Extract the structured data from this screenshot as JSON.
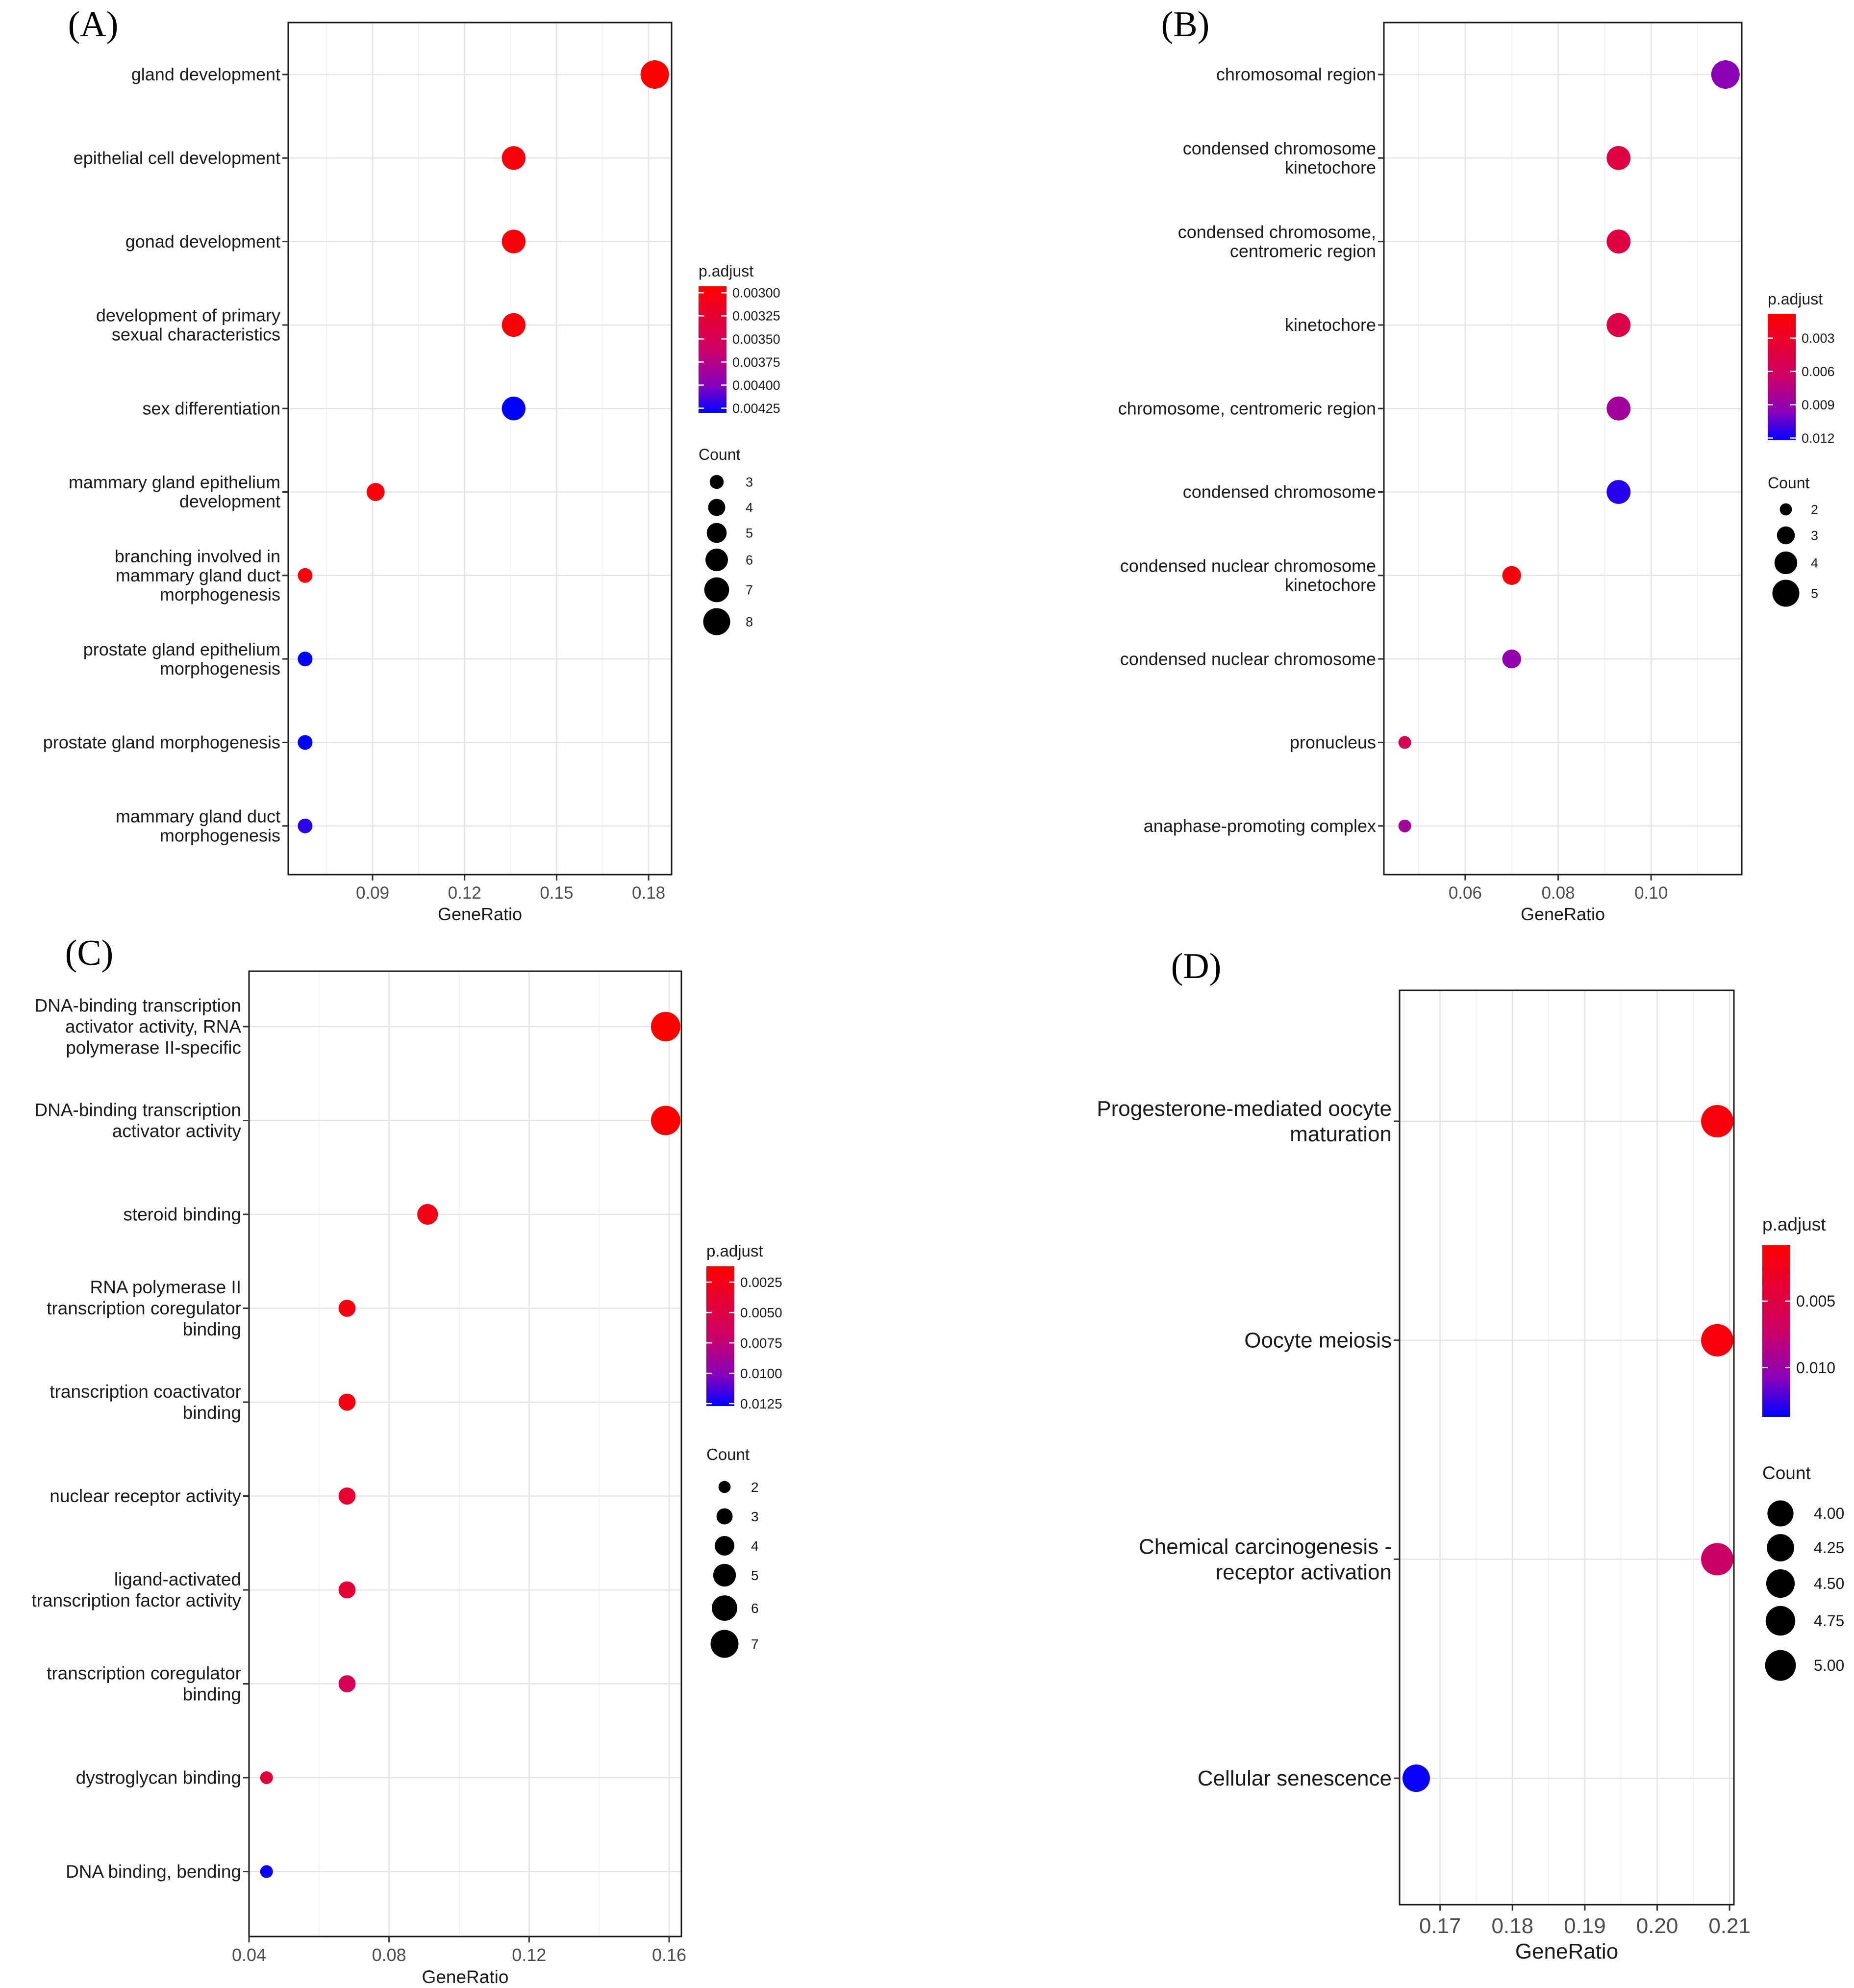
{
  "chart_data": [
    {
      "panel": "(A)",
      "type": "scatter",
      "xlabel": "GeneRatio",
      "xticks": [
        0.09,
        0.12,
        0.15,
        0.18
      ],
      "xlim": [
        0.0625,
        0.1875
      ],
      "categories": [
        "gland development",
        "epithelial cell development",
        "gonad development",
        "development of primary sexual characteristics",
        "sex differentiation",
        "mammary gland epithelium development",
        "branching involved in mammary gland duct morphogenesis",
        "prostate gland epithelium morphogenesis",
        "prostate gland morphogenesis",
        "mammary gland duct morphogenesis"
      ],
      "label_lines": [
        [
          "gland development"
        ],
        [
          "epithelial cell development"
        ],
        [
          "gonad development"
        ],
        [
          "development of primary",
          "sexual characteristics"
        ],
        [
          "sex differentiation"
        ],
        [
          "mammary gland epithelium",
          "development"
        ],
        [
          "branching involved in",
          "mammary gland duct",
          "morphogenesis"
        ],
        [
          "prostate gland epithelium",
          "morphogenesis"
        ],
        [
          "prostate gland morphogenesis"
        ],
        [
          "mammary gland duct",
          "morphogenesis"
        ]
      ],
      "gene_ratio": [
        0.182,
        0.136,
        0.136,
        0.136,
        0.136,
        0.091,
        0.068,
        0.068,
        0.068,
        0.068
      ],
      "count": [
        8,
        6,
        6,
        6,
        6,
        4,
        3,
        3,
        3,
        3
      ],
      "p_adjust": [
        0.0029,
        0.003,
        0.003,
        0.003,
        0.0043,
        0.003,
        0.003,
        0.0043,
        0.0043,
        0.0042
      ],
      "color_legend": {
        "title": "p.adjust",
        "ticks": [
          "0.00300",
          "0.00325",
          "0.00350",
          "0.00375",
          "0.00400",
          "0.00425"
        ],
        "values": [
          0.003,
          0.00325,
          0.0035,
          0.00375,
          0.004,
          0.00425
        ],
        "range": [
          0.00293,
          0.0043
        ]
      },
      "size_legend": {
        "title": "Count",
        "labels": [
          "3",
          "4",
          "5",
          "6",
          "7",
          "8"
        ],
        "values": [
          3,
          4,
          5,
          6,
          7,
          8
        ]
      }
    },
    {
      "panel": "(B)",
      "type": "scatter",
      "xlabel": "GeneRatio",
      "xticks": [
        0.06,
        0.08,
        0.1
      ],
      "xtick_labels": [
        "0.06",
        "0.08",
        "0.10"
      ],
      "xlim": [
        0.0425,
        0.1195
      ],
      "categories": [
        "chromosomal region",
        "condensed chromosome kinetochore",
        "condensed chromosome, centromeric region",
        "kinetochore",
        "chromosome, centromeric region",
        "condensed chromosome",
        "condensed nuclear chromosome kinetochore",
        "condensed nuclear chromosome",
        "pronucleus",
        "anaphase-promoting complex"
      ],
      "label_lines": [
        [
          "chromosomal region"
        ],
        [
          "condensed chromosome",
          "kinetochore"
        ],
        [
          "condensed chromosome,",
          "centromeric region"
        ],
        [
          "kinetochore"
        ],
        [
          "chromosome, centromeric region"
        ],
        [
          "condensed chromosome"
        ],
        [
          "condensed nuclear chromosome",
          "kinetochore"
        ],
        [
          "condensed nuclear chromosome"
        ],
        [
          "pronucleus"
        ],
        [
          "anaphase-promoting complex"
        ]
      ],
      "gene_ratio": [
        0.116,
        0.093,
        0.093,
        0.093,
        0.093,
        0.093,
        0.07,
        0.07,
        0.047,
        0.047
      ],
      "count": [
        5,
        4,
        4,
        4,
        4,
        4,
        3,
        3,
        2,
        2
      ],
      "p_adjust": [
        0.0095,
        0.0045,
        0.0045,
        0.0048,
        0.0085,
        0.0115,
        0.0015,
        0.0092,
        0.0055,
        0.0085
      ],
      "color_legend": {
        "title": "p.adjust",
        "ticks": [
          "0.003",
          "0.006",
          "0.009",
          "0.012"
        ],
        "values": [
          0.003,
          0.006,
          0.009,
          0.012
        ],
        "range": [
          0.0008,
          0.0122
        ]
      },
      "size_legend": {
        "title": "Count",
        "labels": [
          "2",
          "3",
          "4",
          "5"
        ],
        "values": [
          2,
          3,
          4,
          5
        ]
      }
    },
    {
      "panel": "(C)",
      "type": "scatter",
      "xlabel": "GeneRatio",
      "xticks": [
        0.04,
        0.08,
        0.12,
        0.16
      ],
      "xlim": [
        0.04,
        0.1635
      ],
      "categories": [
        "DNA-binding transcription activator activity, RNA polymerase II-specific",
        "DNA-binding transcription activator activity",
        "steroid binding",
        "RNA polymerase II transcription coregulator binding",
        "transcription coactivator binding",
        "nuclear receptor activity",
        "ligand-activated transcription factor activity",
        "transcription coregulator binding",
        "dystroglycan binding",
        "DNA binding, bending"
      ],
      "label_lines": [
        [
          "DNA-binding transcription",
          "activator activity, RNA",
          "polymerase II-specific"
        ],
        [
          "DNA-binding transcription",
          "activator activity"
        ],
        [
          "steroid binding"
        ],
        [
          "RNA polymerase II",
          "transcription coregulator",
          "binding"
        ],
        [
          "transcription coactivator",
          "binding"
        ],
        [
          "nuclear receptor activity"
        ],
        [
          "ligand-activated",
          "transcription factor activity"
        ],
        [
          "transcription coregulator",
          "binding"
        ],
        [
          "dystroglycan binding"
        ],
        [
          "DNA binding, bending"
        ]
      ],
      "gene_ratio": [
        0.159,
        0.159,
        0.091,
        0.068,
        0.068,
        0.068,
        0.068,
        0.068,
        0.045,
        0.045
      ],
      "count": [
        7,
        7,
        4,
        3,
        3,
        3,
        3,
        3,
        2,
        2
      ],
      "p_adjust": [
        0.0012,
        0.0012,
        0.0025,
        0.0022,
        0.0022,
        0.004,
        0.0042,
        0.006,
        0.0045,
        0.0125
      ],
      "color_legend": {
        "title": "p.adjust",
        "ticks": [
          "0.0025",
          "0.0050",
          "0.0075",
          "0.0100",
          "0.0125"
        ],
        "values": [
          0.0025,
          0.005,
          0.0075,
          0.01,
          0.0125
        ],
        "range": [
          0.0012,
          0.0127
        ]
      },
      "size_legend": {
        "title": "Count",
        "labels": [
          "2",
          "3",
          "4",
          "5",
          "6",
          "7"
        ],
        "values": [
          2,
          3,
          4,
          5,
          6,
          7
        ]
      }
    },
    {
      "panel": "(D)",
      "type": "scatter",
      "xlabel": "GeneRatio",
      "xticks": [
        0.17,
        0.18,
        0.19,
        0.2,
        0.21
      ],
      "xtick_labels": [
        "0.17",
        "0.18",
        "0.19",
        "0.20",
        "0.21"
      ],
      "xlim": [
        0.1644,
        0.2106
      ],
      "categories": [
        "Progesterone-mediated oocyte maturation",
        "Oocyte meiosis",
        "Chemical carcinogenesis - receptor activation",
        "Cellular senescence"
      ],
      "label_lines": [
        [
          "Progesterone-mediated oocyte",
          "maturation"
        ],
        [
          "Oocyte meiosis"
        ],
        [
          "Chemical carcinogenesis -",
          "receptor activation"
        ],
        [
          "Cellular senescence"
        ]
      ],
      "gene_ratio": [
        0.2083,
        0.2083,
        0.2083,
        0.1667
      ],
      "count": [
        5,
        5,
        5,
        4
      ],
      "p_adjust": [
        0.0016,
        0.0016,
        0.0073,
        0.0135
      ],
      "color_legend": {
        "title": "p.adjust",
        "ticks": [
          "0.005",
          "0.010"
        ],
        "values": [
          0.005,
          0.01
        ],
        "range": [
          0.0008,
          0.0137
        ]
      },
      "size_legend": {
        "title": "Count",
        "labels": [
          "4.00",
          "4.25",
          "4.50",
          "4.75",
          "5.00"
        ],
        "values": [
          4,
          4.25,
          4.5,
          4.75,
          5
        ]
      }
    }
  ]
}
